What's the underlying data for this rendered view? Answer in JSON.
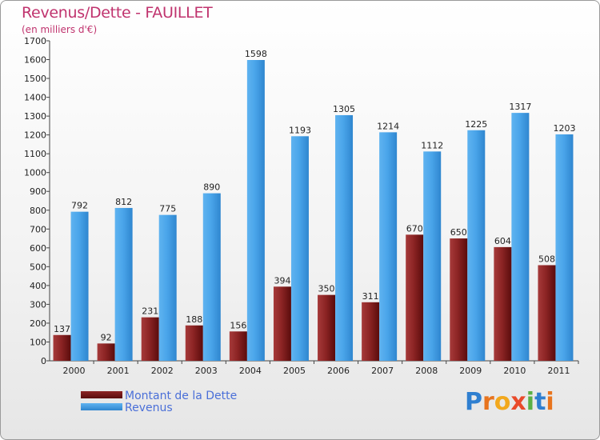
{
  "header": {
    "title": "Revenus/Dette - FAUILLET",
    "subtitle": "(en milliers d'€)"
  },
  "legend": {
    "items": [
      {
        "label": "Montant de la Dette",
        "color": "#7a1a1a"
      },
      {
        "label": "Revenus",
        "color": "#3d9be3"
      }
    ]
  },
  "logo": {
    "text": "Proxiti",
    "letters": [
      {
        "ch": "P",
        "color": "#2f7fd0"
      },
      {
        "ch": "r",
        "color": "#e8741e"
      },
      {
        "ch": "o",
        "color": "#f2a81d"
      },
      {
        "ch": "x",
        "color": "#e94a2a"
      },
      {
        "ch": "i",
        "color": "#5bb045"
      },
      {
        "ch": "t",
        "color": "#2f7fd0"
      },
      {
        "ch": "i",
        "color": "#e8741e"
      }
    ]
  },
  "chart_data": {
    "type": "bar",
    "title": "Revenus/Dette - FAUILLET",
    "subtitle": "(en milliers d'€)",
    "categories": [
      "2000",
      "2001",
      "2002",
      "2003",
      "2004",
      "2005",
      "2006",
      "2007",
      "2008",
      "2009",
      "2010",
      "2011"
    ],
    "series": [
      {
        "name": "Montant de la Dette",
        "color": "#7a1a1a",
        "values": [
          137,
          92,
          231,
          188,
          156,
          394,
          350,
          311,
          670,
          650,
          604,
          508
        ]
      },
      {
        "name": "Revenus",
        "color": "#3d9be3",
        "values": [
          792,
          812,
          775,
          890,
          1598,
          1193,
          1305,
          1214,
          1112,
          1225,
          1317,
          1203
        ]
      }
    ],
    "ylim": [
      0,
      1700
    ],
    "ytick_step": 100,
    "grid": false,
    "legend_position": "bottom-left"
  }
}
